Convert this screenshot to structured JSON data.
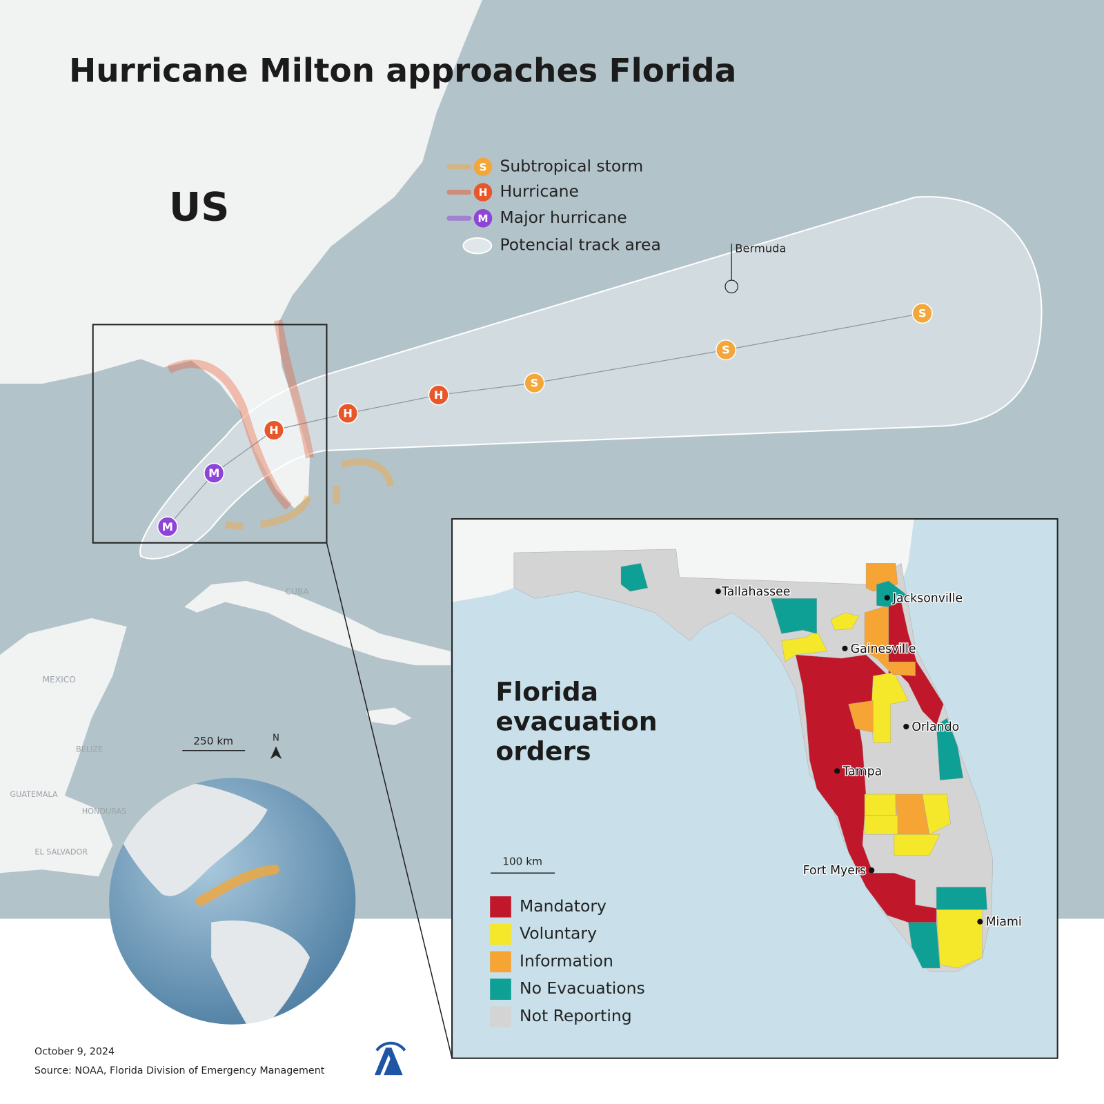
{
  "header": {
    "title": "Hurricane Milton approaches Florida"
  },
  "map": {
    "country_label": "US",
    "legend": [
      {
        "symbol": "S",
        "label": "Subtropical storm",
        "color": "#f3a73b"
      },
      {
        "symbol": "H",
        "label": "Hurricane",
        "color": "#e8572a"
      },
      {
        "symbol": "M",
        "label": "Major hurricane",
        "color": "#8e44d6"
      },
      {
        "label": "Potencial track area"
      }
    ],
    "track": [
      "M",
      "M",
      "H",
      "H",
      "H",
      "S",
      "S",
      "S"
    ],
    "places": [
      "Bermuda",
      "CUBA",
      "MEXICO",
      "BELIZE",
      "GUATEMALA",
      "HONDURAS",
      "EL SALVADOR"
    ],
    "scale": "250 km",
    "north": "N"
  },
  "inset": {
    "title": [
      "Florida",
      "evacuation",
      "orders"
    ],
    "cities": [
      "Tallahassee",
      "Jacksonville",
      "Gainesville",
      "Orlando",
      "Tampa",
      "Fort Myers",
      "Miami"
    ],
    "scale": "100 km",
    "legend": [
      {
        "label": "Mandatory",
        "color": "#c0172b"
      },
      {
        "label": "Voluntary",
        "color": "#f5e72a"
      },
      {
        "label": "Information",
        "color": "#f6a535"
      },
      {
        "label": "No Evacuations",
        "color": "#0fa095"
      },
      {
        "label": "Not Reporting",
        "color": "#d4d4d4"
      }
    ]
  },
  "footer": {
    "date": "October 9, 2024",
    "source": "Source: NOAA, Florida Division of Emergency Management"
  }
}
